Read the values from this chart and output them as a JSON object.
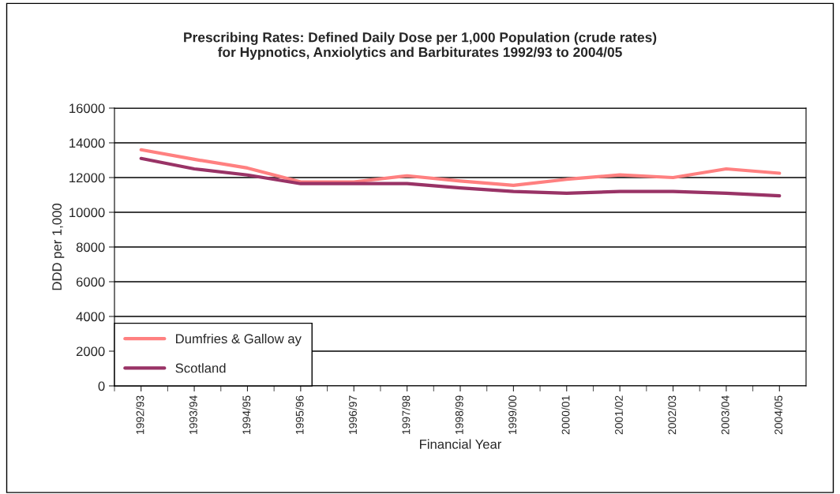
{
  "chart_data": {
    "type": "line",
    "title": "Prescribing Rates: Defined Daily Dose per 1,000 Population (crude rates)\nfor Hypnotics, Anxiolytics and Barbiturates 1992/93 to 2004/05",
    "xlabel": "Financial Year",
    "ylabel": "DDD per 1,000",
    "categories": [
      "1992/93",
      "1993/94",
      "1994/95",
      "1995/96",
      "1996/97",
      "1997/98",
      "1998/99",
      "1999/00",
      "2000/01",
      "2001/02",
      "2002/03",
      "2003/04",
      "2004/05"
    ],
    "series": [
      {
        "name": "Dumfries & Gallow ay",
        "color": "#ff8080",
        "values": [
          13600,
          13050,
          12550,
          11750,
          11750,
          12100,
          11800,
          11550,
          11900,
          12150,
          12000,
          12500,
          12250
        ]
      },
      {
        "name": "Scotland",
        "color": "#993366",
        "values": [
          13100,
          12500,
          12150,
          11650,
          11650,
          11650,
          11400,
          11200,
          11100,
          11200,
          11200,
          11100,
          10950
        ]
      }
    ],
    "ylim": [
      0,
      16000
    ],
    "yticks": [
      0,
      2000,
      4000,
      6000,
      8000,
      10000,
      12000,
      14000,
      16000
    ],
    "grid": "y",
    "legend": "bottom left",
    "marker": "none",
    "line_style": "solid"
  }
}
